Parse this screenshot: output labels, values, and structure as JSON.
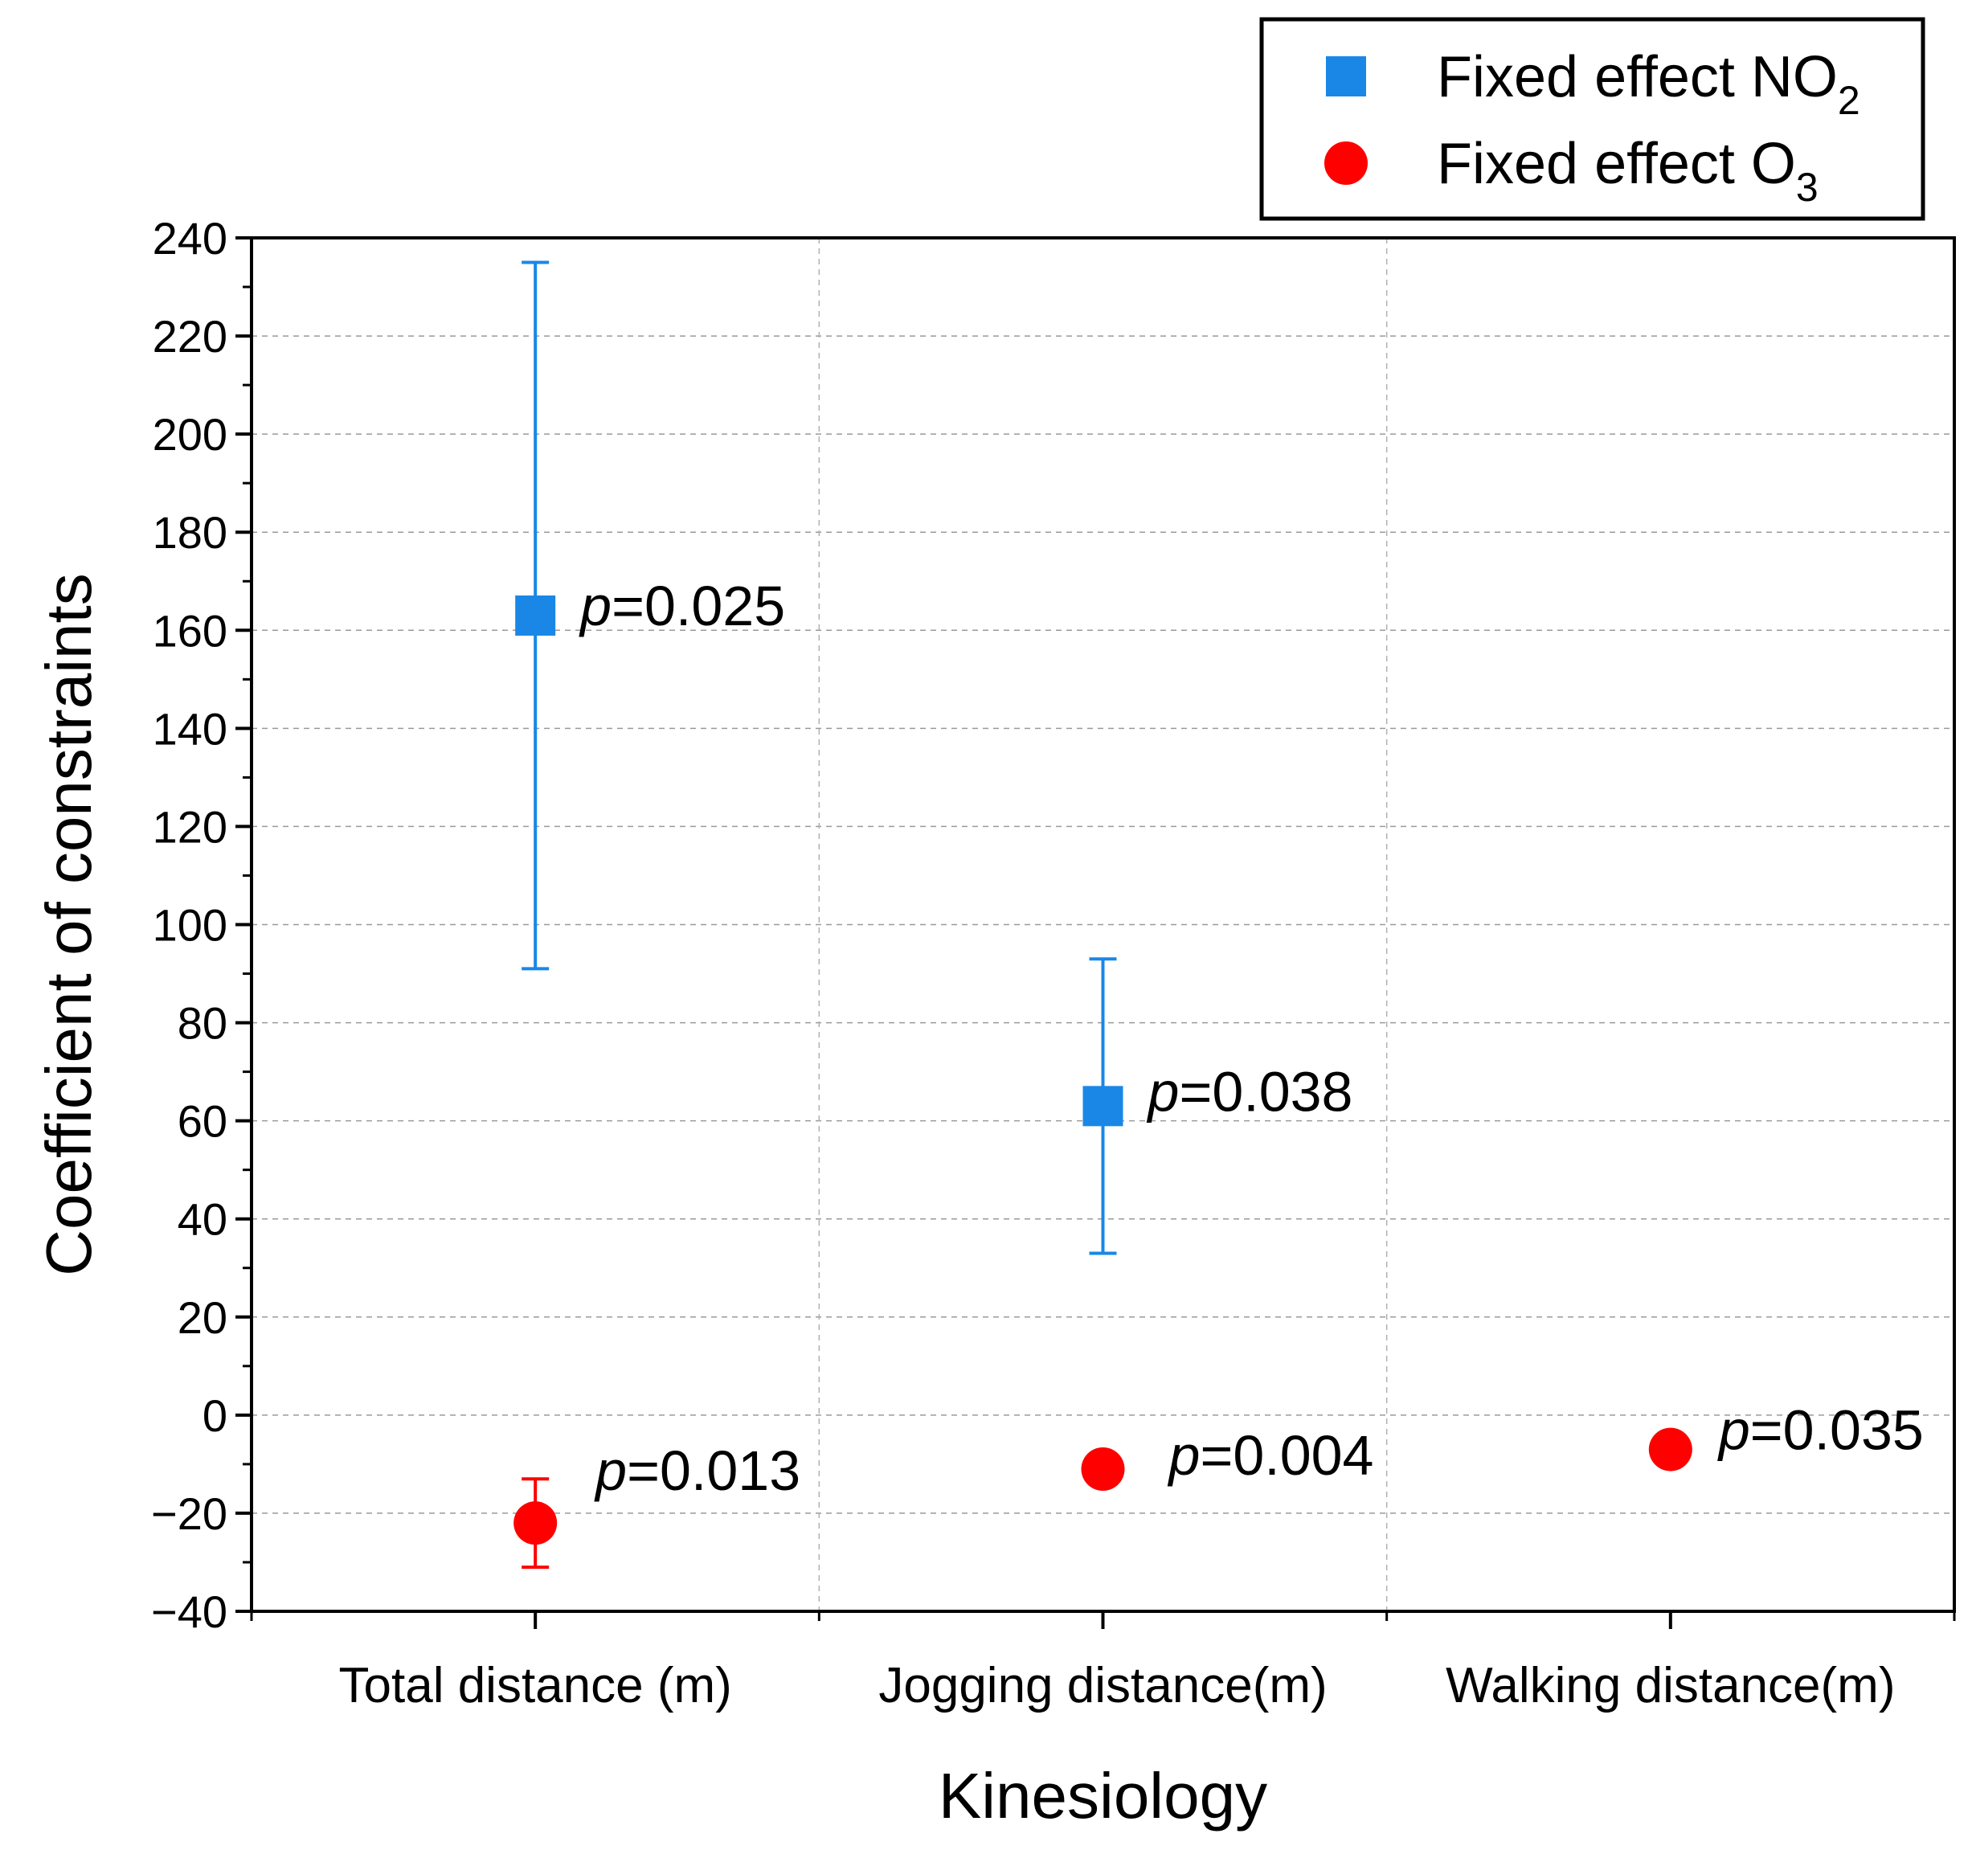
{
  "chart_data": {
    "type": "scatter",
    "xlabel": "Kinesiology",
    "ylabel": "Coefficient of constraints",
    "ylim": [
      -40,
      240
    ],
    "yticks": [
      -40,
      -20,
      0,
      20,
      40,
      60,
      80,
      100,
      120,
      140,
      160,
      180,
      200,
      220,
      240
    ],
    "ytick_labels": [
      "−40",
      "−20",
      "0",
      "20",
      "40",
      "60",
      "80",
      "100",
      "120",
      "140",
      "160",
      "180",
      "200",
      "220",
      "240"
    ],
    "categories": [
      "Total distance (m)",
      "Jogging distance(m)",
      "Walking distance(m)"
    ],
    "grid": true,
    "legend_position": "top-right (outside plot)",
    "series": [
      {
        "name": "Fixed effect NO2",
        "name_base": "Fixed effect NO",
        "name_sub": "2",
        "marker": "square",
        "color": "#1a87e6",
        "points": [
          {
            "category": "Total distance (m)",
            "value": 163,
            "err_low": 91,
            "err_high": 235,
            "p_prefix": "p",
            "p_value": "=0.025"
          },
          {
            "category": "Jogging distance(m)",
            "value": 63,
            "err_low": 33,
            "err_high": 93,
            "p_prefix": "p",
            "p_value": "=0.038"
          }
        ]
      },
      {
        "name": "Fixed effect O3",
        "name_base": "Fixed effect O",
        "name_sub": "3",
        "marker": "circle",
        "color": "#ff0000",
        "points": [
          {
            "category": "Total distance (m)",
            "value": -22,
            "err_low": -31,
            "err_high": -13,
            "p_prefix": "p",
            "p_value": "=0.013"
          },
          {
            "category": "Jogging distance(m)",
            "value": -11,
            "err_low": null,
            "err_high": null,
            "p_prefix": "p",
            "p_value": "=0.004"
          },
          {
            "category": "Walking distance(m)",
            "value": -7,
            "err_low": null,
            "err_high": null,
            "p_prefix": "p",
            "p_value": "=0.035"
          }
        ]
      }
    ]
  }
}
